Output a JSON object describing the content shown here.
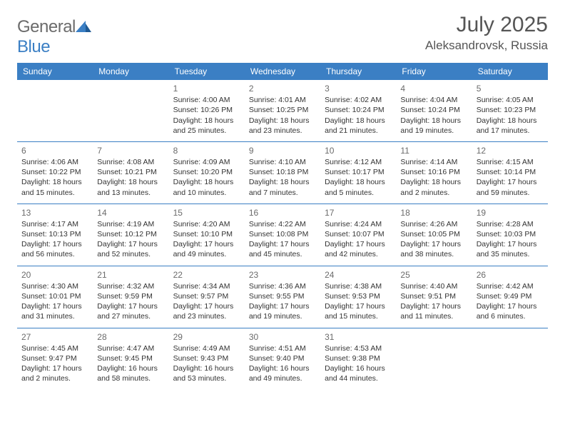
{
  "brand": {
    "part1": "General",
    "part2": "Blue"
  },
  "title": "July 2025",
  "location": "Aleksandrovsk, Russia",
  "colors": {
    "accent": "#3b7fc4",
    "header_text": "#555555",
    "body_text": "#333333",
    "logo_gray": "#6b6b6b"
  },
  "day_headers": [
    "Sunday",
    "Monday",
    "Tuesday",
    "Wednesday",
    "Thursday",
    "Friday",
    "Saturday"
  ],
  "weeks": [
    [
      null,
      null,
      {
        "n": "1",
        "sr": "Sunrise: 4:00 AM",
        "ss": "Sunset: 10:26 PM",
        "d1": "Daylight: 18 hours",
        "d2": "and 25 minutes."
      },
      {
        "n": "2",
        "sr": "Sunrise: 4:01 AM",
        "ss": "Sunset: 10:25 PM",
        "d1": "Daylight: 18 hours",
        "d2": "and 23 minutes."
      },
      {
        "n": "3",
        "sr": "Sunrise: 4:02 AM",
        "ss": "Sunset: 10:24 PM",
        "d1": "Daylight: 18 hours",
        "d2": "and 21 minutes."
      },
      {
        "n": "4",
        "sr": "Sunrise: 4:04 AM",
        "ss": "Sunset: 10:24 PM",
        "d1": "Daylight: 18 hours",
        "d2": "and 19 minutes."
      },
      {
        "n": "5",
        "sr": "Sunrise: 4:05 AM",
        "ss": "Sunset: 10:23 PM",
        "d1": "Daylight: 18 hours",
        "d2": "and 17 minutes."
      }
    ],
    [
      {
        "n": "6",
        "sr": "Sunrise: 4:06 AM",
        "ss": "Sunset: 10:22 PM",
        "d1": "Daylight: 18 hours",
        "d2": "and 15 minutes."
      },
      {
        "n": "7",
        "sr": "Sunrise: 4:08 AM",
        "ss": "Sunset: 10:21 PM",
        "d1": "Daylight: 18 hours",
        "d2": "and 13 minutes."
      },
      {
        "n": "8",
        "sr": "Sunrise: 4:09 AM",
        "ss": "Sunset: 10:20 PM",
        "d1": "Daylight: 18 hours",
        "d2": "and 10 minutes."
      },
      {
        "n": "9",
        "sr": "Sunrise: 4:10 AM",
        "ss": "Sunset: 10:18 PM",
        "d1": "Daylight: 18 hours",
        "d2": "and 7 minutes."
      },
      {
        "n": "10",
        "sr": "Sunrise: 4:12 AM",
        "ss": "Sunset: 10:17 PM",
        "d1": "Daylight: 18 hours",
        "d2": "and 5 minutes."
      },
      {
        "n": "11",
        "sr": "Sunrise: 4:14 AM",
        "ss": "Sunset: 10:16 PM",
        "d1": "Daylight: 18 hours",
        "d2": "and 2 minutes."
      },
      {
        "n": "12",
        "sr": "Sunrise: 4:15 AM",
        "ss": "Sunset: 10:14 PM",
        "d1": "Daylight: 17 hours",
        "d2": "and 59 minutes."
      }
    ],
    [
      {
        "n": "13",
        "sr": "Sunrise: 4:17 AM",
        "ss": "Sunset: 10:13 PM",
        "d1": "Daylight: 17 hours",
        "d2": "and 56 minutes."
      },
      {
        "n": "14",
        "sr": "Sunrise: 4:19 AM",
        "ss": "Sunset: 10:12 PM",
        "d1": "Daylight: 17 hours",
        "d2": "and 52 minutes."
      },
      {
        "n": "15",
        "sr": "Sunrise: 4:20 AM",
        "ss": "Sunset: 10:10 PM",
        "d1": "Daylight: 17 hours",
        "d2": "and 49 minutes."
      },
      {
        "n": "16",
        "sr": "Sunrise: 4:22 AM",
        "ss": "Sunset: 10:08 PM",
        "d1": "Daylight: 17 hours",
        "d2": "and 45 minutes."
      },
      {
        "n": "17",
        "sr": "Sunrise: 4:24 AM",
        "ss": "Sunset: 10:07 PM",
        "d1": "Daylight: 17 hours",
        "d2": "and 42 minutes."
      },
      {
        "n": "18",
        "sr": "Sunrise: 4:26 AM",
        "ss": "Sunset: 10:05 PM",
        "d1": "Daylight: 17 hours",
        "d2": "and 38 minutes."
      },
      {
        "n": "19",
        "sr": "Sunrise: 4:28 AM",
        "ss": "Sunset: 10:03 PM",
        "d1": "Daylight: 17 hours",
        "d2": "and 35 minutes."
      }
    ],
    [
      {
        "n": "20",
        "sr": "Sunrise: 4:30 AM",
        "ss": "Sunset: 10:01 PM",
        "d1": "Daylight: 17 hours",
        "d2": "and 31 minutes."
      },
      {
        "n": "21",
        "sr": "Sunrise: 4:32 AM",
        "ss": "Sunset: 9:59 PM",
        "d1": "Daylight: 17 hours",
        "d2": "and 27 minutes."
      },
      {
        "n": "22",
        "sr": "Sunrise: 4:34 AM",
        "ss": "Sunset: 9:57 PM",
        "d1": "Daylight: 17 hours",
        "d2": "and 23 minutes."
      },
      {
        "n": "23",
        "sr": "Sunrise: 4:36 AM",
        "ss": "Sunset: 9:55 PM",
        "d1": "Daylight: 17 hours",
        "d2": "and 19 minutes."
      },
      {
        "n": "24",
        "sr": "Sunrise: 4:38 AM",
        "ss": "Sunset: 9:53 PM",
        "d1": "Daylight: 17 hours",
        "d2": "and 15 minutes."
      },
      {
        "n": "25",
        "sr": "Sunrise: 4:40 AM",
        "ss": "Sunset: 9:51 PM",
        "d1": "Daylight: 17 hours",
        "d2": "and 11 minutes."
      },
      {
        "n": "26",
        "sr": "Sunrise: 4:42 AM",
        "ss": "Sunset: 9:49 PM",
        "d1": "Daylight: 17 hours",
        "d2": "and 6 minutes."
      }
    ],
    [
      {
        "n": "27",
        "sr": "Sunrise: 4:45 AM",
        "ss": "Sunset: 9:47 PM",
        "d1": "Daylight: 17 hours",
        "d2": "and 2 minutes."
      },
      {
        "n": "28",
        "sr": "Sunrise: 4:47 AM",
        "ss": "Sunset: 9:45 PM",
        "d1": "Daylight: 16 hours",
        "d2": "and 58 minutes."
      },
      {
        "n": "29",
        "sr": "Sunrise: 4:49 AM",
        "ss": "Sunset: 9:43 PM",
        "d1": "Daylight: 16 hours",
        "d2": "and 53 minutes."
      },
      {
        "n": "30",
        "sr": "Sunrise: 4:51 AM",
        "ss": "Sunset: 9:40 PM",
        "d1": "Daylight: 16 hours",
        "d2": "and 49 minutes."
      },
      {
        "n": "31",
        "sr": "Sunrise: 4:53 AM",
        "ss": "Sunset: 9:38 PM",
        "d1": "Daylight: 16 hours",
        "d2": "and 44 minutes."
      },
      null,
      null
    ]
  ]
}
